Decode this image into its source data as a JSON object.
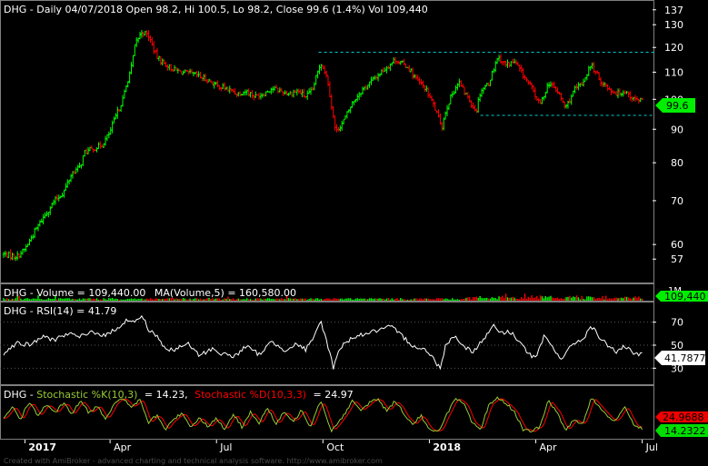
{
  "chart_data": {
    "type": "financial-multi-pane",
    "symbol": "DHG",
    "colors": {
      "background": "#000000",
      "up": "#00ff00",
      "down": "#ff0000",
      "text": "#ffffff",
      "grid": "#5a5a5a",
      "box": "#7f7f7f",
      "support": "#00cccc",
      "volume_color": "#00cc00",
      "ma_color": "#cc0000",
      "k_color": "#99cc33",
      "d_color": "#ff0000",
      "rsi_color": "#ffffff",
      "price_badge": "#00ee00",
      "d_badge": "#ee0000",
      "k_badge": "#00dd00"
    },
    "x_axis": {
      "labels": [
        {
          "text": "2017",
          "bold": true,
          "t": 0.05
        },
        {
          "text": "Apr",
          "bold": false,
          "t": 0.25
        },
        {
          "text": "Jul",
          "bold": false,
          "t": 0.5
        },
        {
          "text": "Oct",
          "bold": false,
          "t": 0.75
        },
        {
          "text": "2018",
          "bold": true,
          "t": 1.0
        },
        {
          "text": "Apr",
          "bold": false,
          "t": 1.25
        },
        {
          "text": "Jul",
          "bold": false,
          "t": 1.5
        }
      ],
      "t_range": [
        0.0,
        1.52
      ]
    },
    "price_pane": {
      "header": "DHG - Daily 04/07/2018 Open 98.2, Hi 100.5, Lo 98.2, Close 99.6 (1.4%) Vol 109,440",
      "scale": "log",
      "ylim": [
        53,
        140
      ],
      "ticks": [
        137,
        130,
        120,
        110,
        100,
        90,
        80,
        70,
        60,
        57
      ],
      "last_value_label": "99.6",
      "last_value": 99.6,
      "resistance": {
        "level": 118,
        "t_start": 0.74,
        "t_end": 1.53
      },
      "support": {
        "level": 94.5,
        "t_start": 1.12,
        "t_end": 1.53
      },
      "anchors": [
        [
          0.0,
          58
        ],
        [
          0.03,
          57.5
        ],
        [
          0.05,
          59
        ],
        [
          0.08,
          64
        ],
        [
          0.1,
          67
        ],
        [
          0.12,
          70
        ],
        [
          0.14,
          72
        ],
        [
          0.16,
          77
        ],
        [
          0.18,
          79
        ],
        [
          0.19,
          83
        ],
        [
          0.21,
          84
        ],
        [
          0.23,
          85
        ],
        [
          0.25,
          89
        ],
        [
          0.26,
          93
        ],
        [
          0.28,
          100
        ],
        [
          0.3,
          112
        ],
        [
          0.31,
          122
        ],
        [
          0.325,
          127
        ],
        [
          0.34,
          125
        ],
        [
          0.36,
          116
        ],
        [
          0.38,
          113
        ],
        [
          0.4,
          111
        ],
        [
          0.42,
          110
        ],
        [
          0.45,
          109
        ],
        [
          0.48,
          107
        ],
        [
          0.5,
          105
        ],
        [
          0.52,
          104
        ],
        [
          0.55,
          102
        ],
        [
          0.57,
          103
        ],
        [
          0.59,
          101
        ],
        [
          0.61,
          102
        ],
        [
          0.63,
          104
        ],
        [
          0.65,
          103
        ],
        [
          0.67,
          102
        ],
        [
          0.69,
          103
        ],
        [
          0.71,
          101
        ],
        [
          0.725,
          103
        ],
        [
          0.745,
          114
        ],
        [
          0.76,
          108
        ],
        [
          0.77,
          98
        ],
        [
          0.78,
          89
        ],
        [
          0.8,
          93
        ],
        [
          0.82,
          99
        ],
        [
          0.84,
          103
        ],
        [
          0.86,
          106
        ],
        [
          0.88,
          109
        ],
        [
          0.9,
          112
        ],
        [
          0.92,
          115
        ],
        [
          0.93,
          114
        ],
        [
          0.95,
          112
        ],
        [
          0.97,
          107
        ],
        [
          0.99,
          104
        ],
        [
          1.01,
          98
        ],
        [
          1.02,
          94
        ],
        [
          1.03,
          91
        ],
        [
          1.04,
          97
        ],
        [
          1.06,
          104
        ],
        [
          1.07,
          106
        ],
        [
          1.08,
          103
        ],
        [
          1.09,
          101
        ],
        [
          1.1,
          98
        ],
        [
          1.11,
          96
        ],
        [
          1.12,
          103
        ],
        [
          1.14,
          106
        ],
        [
          1.16,
          116
        ],
        [
          1.18,
          113
        ],
        [
          1.2,
          114
        ],
        [
          1.22,
          109
        ],
        [
          1.24,
          104
        ],
        [
          1.26,
          98
        ],
        [
          1.28,
          106
        ],
        [
          1.3,
          103
        ],
        [
          1.32,
          97
        ],
        [
          1.34,
          103
        ],
        [
          1.36,
          106
        ],
        [
          1.38,
          113
        ],
        [
          1.4,
          107
        ],
        [
          1.42,
          104
        ],
        [
          1.44,
          102
        ],
        [
          1.46,
          103
        ],
        [
          1.48,
          100
        ],
        [
          1.5,
          99.6
        ]
      ]
    },
    "volume_pane": {
      "header_volume": "DHG - Volume = 109,440.00",
      "header_ma": "MA(Volume,5) = 160,580.00",
      "right_label": "1M",
      "last_value_label": "109,440",
      "last_value": 109440,
      "max": 1000000
    },
    "rsi_pane": {
      "header": "DHG - RSI(14) = 41.79",
      "ylim": [
        20,
        80
      ],
      "ticks": [
        70,
        50,
        30
      ],
      "last_value_label": "41.7877",
      "last_value": 41.79,
      "anchors": [
        [
          0.0,
          43
        ],
        [
          0.03,
          52
        ],
        [
          0.06,
          50
        ],
        [
          0.09,
          57
        ],
        [
          0.12,
          55
        ],
        [
          0.15,
          60
        ],
        [
          0.18,
          57
        ],
        [
          0.21,
          62
        ],
        [
          0.24,
          58
        ],
        [
          0.27,
          66
        ],
        [
          0.29,
          72
        ],
        [
          0.31,
          70
        ],
        [
          0.325,
          76
        ],
        [
          0.34,
          64
        ],
        [
          0.36,
          58
        ],
        [
          0.38,
          47
        ],
        [
          0.4,
          45
        ],
        [
          0.43,
          52
        ],
        [
          0.46,
          41
        ],
        [
          0.49,
          47
        ],
        [
          0.51,
          43
        ],
        [
          0.54,
          40
        ],
        [
          0.57,
          49
        ],
        [
          0.6,
          42
        ],
        [
          0.63,
          53
        ],
        [
          0.66,
          46
        ],
        [
          0.69,
          51
        ],
        [
          0.71,
          46
        ],
        [
          0.73,
          57
        ],
        [
          0.745,
          71
        ],
        [
          0.76,
          52
        ],
        [
          0.775,
          30
        ],
        [
          0.79,
          48
        ],
        [
          0.82,
          57
        ],
        [
          0.85,
          60
        ],
        [
          0.88,
          63
        ],
        [
          0.91,
          66
        ],
        [
          0.93,
          60
        ],
        [
          0.96,
          50
        ],
        [
          0.99,
          46
        ],
        [
          1.01,
          38
        ],
        [
          1.025,
          30
        ],
        [
          1.04,
          52
        ],
        [
          1.06,
          58
        ],
        [
          1.08,
          50
        ],
        [
          1.1,
          44
        ],
        [
          1.13,
          56
        ],
        [
          1.15,
          68
        ],
        [
          1.17,
          60
        ],
        [
          1.19,
          62
        ],
        [
          1.21,
          54
        ],
        [
          1.23,
          44
        ],
        [
          1.25,
          38
        ],
        [
          1.27,
          58
        ],
        [
          1.29,
          48
        ],
        [
          1.31,
          38
        ],
        [
          1.34,
          52
        ],
        [
          1.36,
          55
        ],
        [
          1.38,
          67
        ],
        [
          1.4,
          56
        ],
        [
          1.42,
          50
        ],
        [
          1.44,
          44
        ],
        [
          1.46,
          49
        ],
        [
          1.48,
          42
        ],
        [
          1.5,
          41.79
        ]
      ]
    },
    "stoch_pane": {
      "header_prefix": "DHG - ",
      "k_label": "Stochastic %K(10,3)",
      "k_value": "= 14.23,",
      "d_label": "Stochastic %D(10,3,3)",
      "d_value": "= 24.97",
      "ylim": [
        0,
        100
      ],
      "d_last_label": "24.9688",
      "d_last": 24.97,
      "k_last_label": "14.2322",
      "k_last": 14.23,
      "k_anchors": [
        [
          0.0,
          40
        ],
        [
          0.02,
          72
        ],
        [
          0.04,
          40
        ],
        [
          0.06,
          86
        ],
        [
          0.08,
          48
        ],
        [
          0.1,
          78
        ],
        [
          0.12,
          54
        ],
        [
          0.14,
          82
        ],
        [
          0.16,
          52
        ],
        [
          0.18,
          88
        ],
        [
          0.2,
          56
        ],
        [
          0.22,
          75
        ],
        [
          0.24,
          40
        ],
        [
          0.26,
          82
        ],
        [
          0.28,
          92
        ],
        [
          0.3,
          72
        ],
        [
          0.32,
          90
        ],
        [
          0.34,
          30
        ],
        [
          0.36,
          50
        ],
        [
          0.38,
          12
        ],
        [
          0.4,
          40
        ],
        [
          0.42,
          56
        ],
        [
          0.44,
          18
        ],
        [
          0.46,
          44
        ],
        [
          0.48,
          20
        ],
        [
          0.5,
          42
        ],
        [
          0.52,
          12
        ],
        [
          0.54,
          52
        ],
        [
          0.56,
          18
        ],
        [
          0.58,
          60
        ],
        [
          0.6,
          28
        ],
        [
          0.62,
          70
        ],
        [
          0.64,
          25
        ],
        [
          0.66,
          60
        ],
        [
          0.68,
          30
        ],
        [
          0.7,
          65
        ],
        [
          0.72,
          20
        ],
        [
          0.745,
          90
        ],
        [
          0.77,
          8
        ],
        [
          0.8,
          52
        ],
        [
          0.82,
          88
        ],
        [
          0.84,
          60
        ],
        [
          0.86,
          85
        ],
        [
          0.88,
          92
        ],
        [
          0.9,
          60
        ],
        [
          0.92,
          88
        ],
        [
          0.94,
          55
        ],
        [
          0.96,
          25
        ],
        [
          0.98,
          50
        ],
        [
          1.0,
          10
        ],
        [
          1.02,
          5
        ],
        [
          1.04,
          50
        ],
        [
          1.06,
          92
        ],
        [
          1.08,
          82
        ],
        [
          1.1,
          30
        ],
        [
          1.12,
          10
        ],
        [
          1.14,
          78
        ],
        [
          1.16,
          96
        ],
        [
          1.18,
          80
        ],
        [
          1.2,
          60
        ],
        [
          1.22,
          10
        ],
        [
          1.24,
          8
        ],
        [
          1.26,
          20
        ],
        [
          1.28,
          90
        ],
        [
          1.3,
          55
        ],
        [
          1.32,
          10
        ],
        [
          1.34,
          40
        ],
        [
          1.36,
          25
        ],
        [
          1.38,
          96
        ],
        [
          1.4,
          70
        ],
        [
          1.42,
          45
        ],
        [
          1.44,
          35
        ],
        [
          1.46,
          75
        ],
        [
          1.48,
          25
        ],
        [
          1.5,
          14.23
        ]
      ]
    },
    "footer": "Created with AmiBroker - advanced charting and technical analysis software. http://www.amibroker.com"
  }
}
